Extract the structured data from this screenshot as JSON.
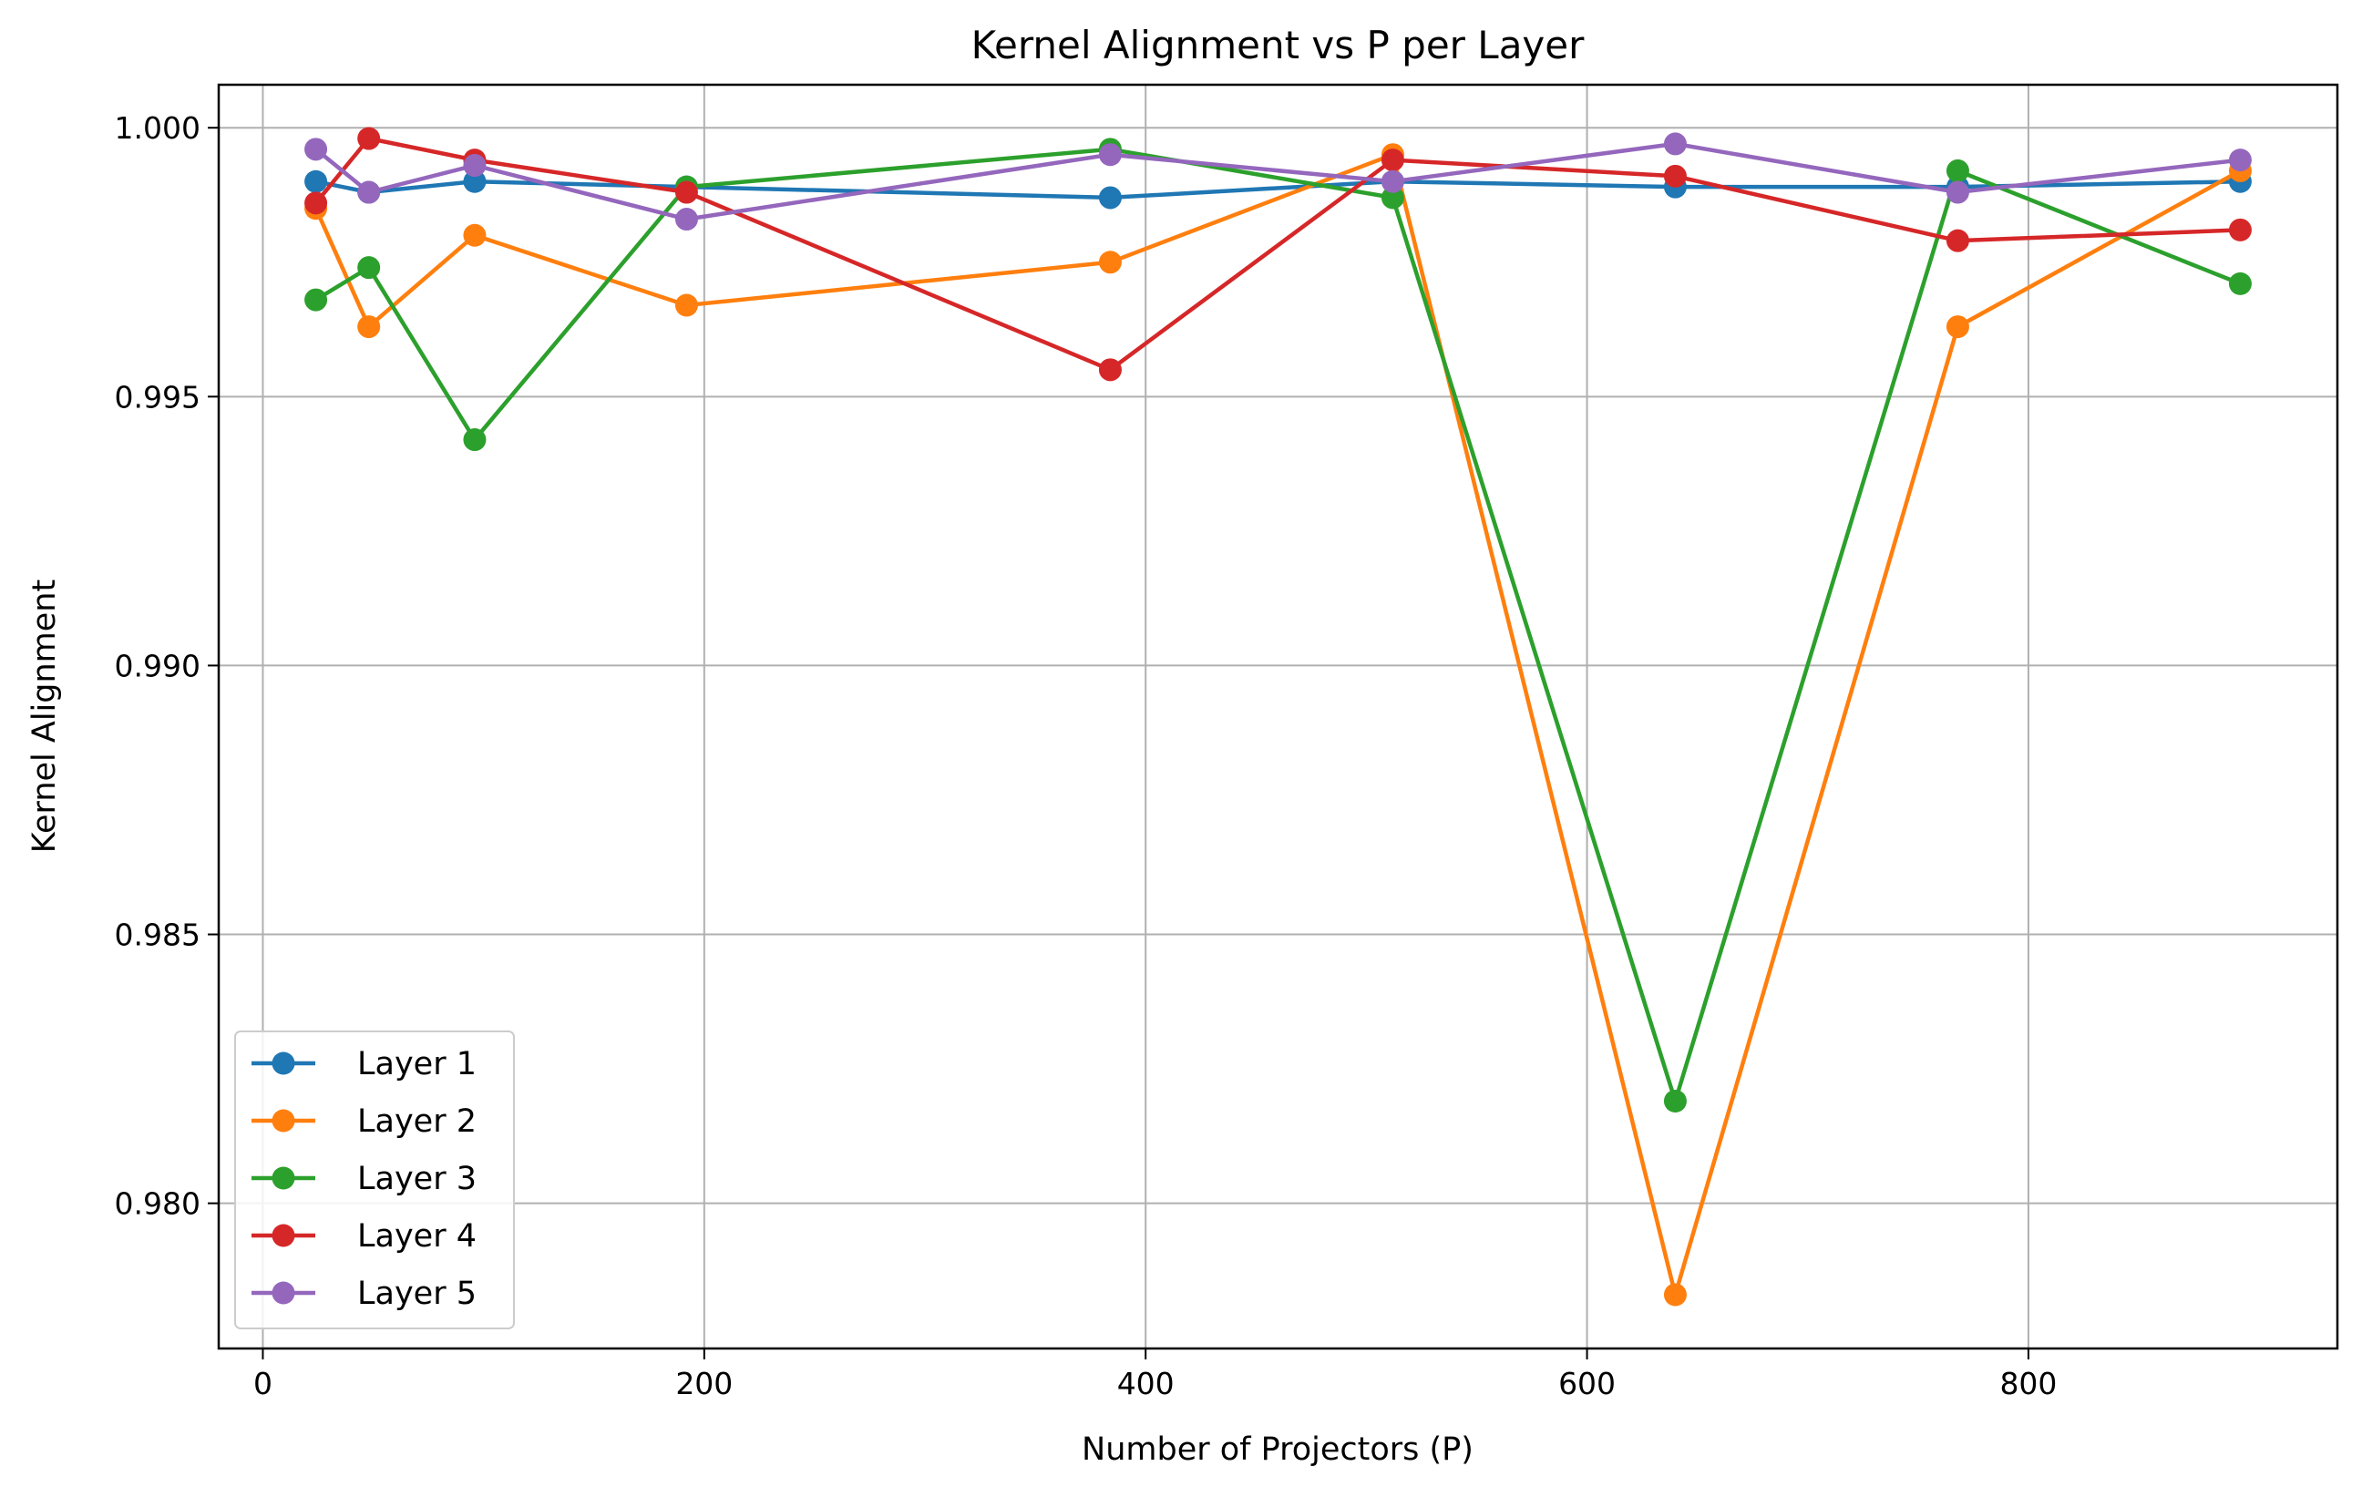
{
  "chart_data": {
    "type": "line",
    "title": "Kernel Alignment vs P per Layer",
    "xlabel": "Number of Projectors (P)",
    "ylabel": "Kernel Alignment",
    "x": [
      24,
      48,
      96,
      192,
      384,
      512,
      640,
      768,
      896
    ],
    "xlim": [
      -20,
      940
    ],
    "ylim": [
      0.9773,
      1.0008
    ],
    "xticks": [
      0,
      200,
      400,
      600,
      800
    ],
    "xtick_labels": [
      "0",
      "200",
      "400",
      "600",
      "800"
    ],
    "yticks": [
      0.98,
      0.985,
      0.99,
      0.995,
      1.0
    ],
    "ytick_labels": [
      "0.980",
      "0.985",
      "0.990",
      "0.995",
      "1.000"
    ],
    "grid": true,
    "legend_position": "lower-left",
    "series": [
      {
        "name": "Layer 1",
        "color": "#1f77b4",
        "values": [
          0.999,
          0.9988,
          0.999,
          0.9989,
          0.9987,
          0.999,
          0.9989,
          0.9989,
          0.999
        ]
      },
      {
        "name": "Layer 2",
        "color": "#ff7f0e",
        "values": [
          0.9985,
          0.9963,
          0.998,
          0.9967,
          0.9975,
          0.9995,
          0.9783,
          0.9963,
          0.9992
        ]
      },
      {
        "name": "Layer 3",
        "color": "#2ca02c",
        "values": [
          0.9968,
          0.9974,
          0.9942,
          0.9989,
          0.9996,
          0.9987,
          0.9819,
          0.9992,
          0.9971
        ]
      },
      {
        "name": "Layer 4",
        "color": "#d62728",
        "values": [
          0.9986,
          0.9998,
          0.9994,
          0.9988,
          0.9955,
          0.9994,
          0.9991,
          0.9979,
          0.9981
        ]
      },
      {
        "name": "Layer 5",
        "color": "#9467bd",
        "values": [
          0.9996,
          0.9988,
          0.9993,
          0.9983,
          0.9995,
          0.999,
          0.9997,
          0.9988,
          0.9994
        ]
      }
    ]
  }
}
